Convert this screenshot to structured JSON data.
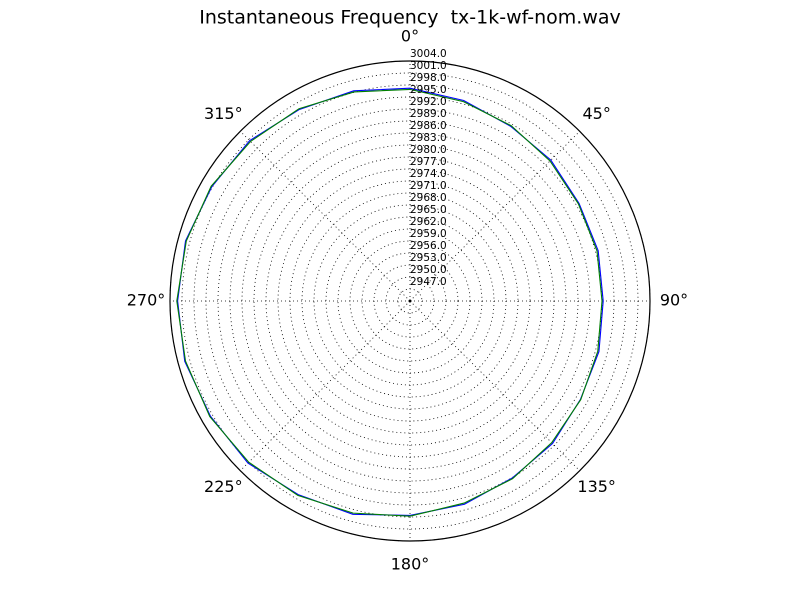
{
  "chart_data": {
    "type": "polar-line",
    "title": "Instantaneous Frequency  tx-1k-wf-nom.wav",
    "x": [
      0,
      15,
      30,
      45,
      60,
      75,
      90,
      105,
      120,
      135,
      150,
      165,
      180,
      195,
      210,
      225,
      240,
      255,
      270,
      285,
      300,
      315,
      330,
      345,
      360
    ],
    "series": [
      {
        "color": "#0000ff",
        "values": [
          2997.2,
          2995.9,
          2994.4,
          2993.8,
          2992.8,
          2992.7,
          2992.3,
          2992.9,
          2993.2,
          2994.4,
          2995.1,
          2996.6,
          2997.6,
          2999.2,
          2999.9,
          3001.3,
          3001.6,
          3002.3,
          3002.1,
          3002.1,
          3001.2,
          3000.7,
          2999.3,
          2998.4,
          2997.2
        ]
      },
      {
        "color": "#008000",
        "values": [
          2996.9,
          2995.6,
          2994.6,
          2993.5,
          2992.6,
          2992.4,
          2992.0,
          2992.6,
          2993.3,
          2994.1,
          2995.3,
          2996.3,
          2997.8,
          2998.9,
          3000.1,
          3001.0,
          3001.8,
          3002.1,
          3002.3,
          3001.9,
          3001.4,
          3000.4,
          2999.5,
          2998.1,
          2996.9
        ]
      }
    ],
    "xlim": [
      0,
      360
    ],
    "xticks": [
      {
        "value": 0,
        "label": "0°"
      },
      {
        "value": 45,
        "label": "45°"
      },
      {
        "value": 90,
        "label": "90°"
      },
      {
        "value": 135,
        "label": "135°"
      },
      {
        "value": 180,
        "label": "180°"
      },
      {
        "value": 225,
        "label": "225°"
      },
      {
        "value": 270,
        "label": "270°"
      },
      {
        "value": 315,
        "label": "315°"
      }
    ],
    "ylim": [
      2944,
      3004
    ],
    "yticks": [
      {
        "value": 2947,
        "label": "2947.0"
      },
      {
        "value": 2950,
        "label": "2950.0"
      },
      {
        "value": 2953,
        "label": "2953.0"
      },
      {
        "value": 2956,
        "label": "2956.0"
      },
      {
        "value": 2959,
        "label": "2959.0"
      },
      {
        "value": 2962,
        "label": "2962.0"
      },
      {
        "value": 2965,
        "label": "2965.0"
      },
      {
        "value": 2968,
        "label": "2968.0"
      },
      {
        "value": 2971,
        "label": "2971.0"
      },
      {
        "value": 2974,
        "label": "2974.0"
      },
      {
        "value": 2977,
        "label": "2977.0"
      },
      {
        "value": 2980,
        "label": "2980.0"
      },
      {
        "value": 2983,
        "label": "2983.0"
      },
      {
        "value": 2986,
        "label": "2986.0"
      },
      {
        "value": 2989,
        "label": "2989.0"
      },
      {
        "value": 2992,
        "label": "2992.0"
      },
      {
        "value": 2995,
        "label": "2995.0"
      },
      {
        "value": 2998,
        "label": "2998.0"
      },
      {
        "value": 3001,
        "label": "3001.0"
      },
      {
        "value": 3004,
        "label": "3004.0"
      }
    ],
    "grid": true
  }
}
